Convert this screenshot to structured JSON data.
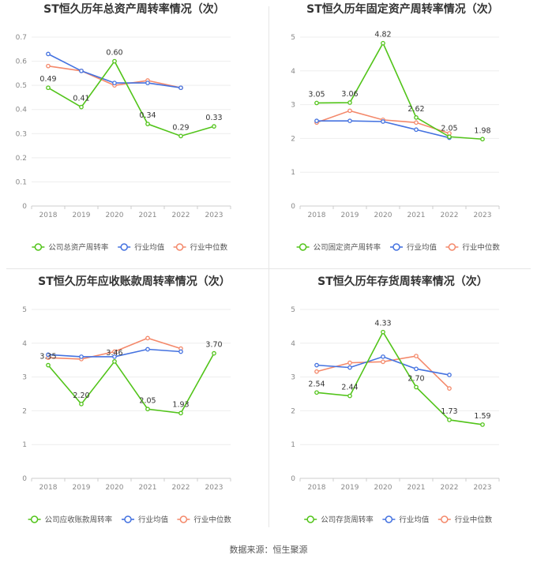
{
  "source": "数据来源：恒生聚源",
  "colors": {
    "company": "#52c41a",
    "average": "#4472e0",
    "median": "#f4896b"
  },
  "chart_data": [
    {
      "type": "line",
      "title": "ST恒久历年总资产周转率情况（次）",
      "categories": [
        "2018",
        "2019",
        "2020",
        "2021",
        "2022",
        "2023"
      ],
      "yticks": [
        "0",
        "0.1",
        "0.2",
        "0.3",
        "0.4",
        "0.5",
        "0.6",
        "0.7"
      ],
      "ylim": [
        0,
        0.7
      ],
      "series": [
        {
          "name": "公司总资产周转率",
          "values": [
            0.49,
            0.41,
            0.6,
            0.34,
            0.29,
            0.33
          ],
          "labels": [
            "0.49",
            "0.41",
            "0.60",
            "0.34",
            "0.29",
            "0.33"
          ]
        },
        {
          "name": "行业均值",
          "values": [
            0.63,
            0.56,
            0.51,
            0.51,
            0.49,
            null
          ]
        },
        {
          "name": "行业中位数",
          "values": [
            0.58,
            0.56,
            0.5,
            0.52,
            0.49,
            null
          ]
        }
      ]
    },
    {
      "type": "line",
      "title": "ST恒久历年固定资产周转率情况（次）",
      "categories": [
        "2018",
        "2019",
        "2020",
        "2021",
        "2022",
        "2023"
      ],
      "yticks": [
        "0",
        "1",
        "2",
        "3",
        "4",
        "5"
      ],
      "ylim": [
        0,
        5
      ],
      "series": [
        {
          "name": "公司固定资产周转率",
          "values": [
            3.05,
            3.06,
            4.82,
            2.62,
            2.05,
            1.98
          ],
          "labels": [
            "3.05",
            "3.06",
            "4.82",
            "2.62",
            "2.05",
            "1.98"
          ]
        },
        {
          "name": "行业均值",
          "values": [
            2.52,
            2.52,
            2.5,
            2.26,
            2.02,
            null
          ]
        },
        {
          "name": "行业中位数",
          "values": [
            2.47,
            2.82,
            2.55,
            2.47,
            2.15,
            null
          ]
        }
      ]
    },
    {
      "type": "line",
      "title": "ST恒久历年应收账款周转率情况（次）",
      "categories": [
        "2018",
        "2019",
        "2020",
        "2021",
        "2022",
        "2023"
      ],
      "yticks": [
        "0",
        "1",
        "2",
        "3",
        "4",
        "5"
      ],
      "ylim": [
        0,
        5
      ],
      "series": [
        {
          "name": "公司应收账款周转率",
          "values": [
            3.35,
            2.2,
            3.46,
            2.05,
            1.93,
            3.7
          ],
          "labels": [
            "3.35",
            "2.20",
            "3.46",
            "2.05",
            "1.93",
            "3.70"
          ]
        },
        {
          "name": "行业均值",
          "values": [
            3.66,
            3.6,
            3.6,
            3.82,
            3.75,
            null
          ]
        },
        {
          "name": "行业中位数",
          "values": [
            3.57,
            3.53,
            3.75,
            4.15,
            3.84,
            null
          ]
        }
      ]
    },
    {
      "type": "line",
      "title": "ST恒久历年存货周转率情况（次）",
      "categories": [
        "2018",
        "2019",
        "2020",
        "2021",
        "2022",
        "2023"
      ],
      "yticks": [
        "0",
        "1",
        "2",
        "3",
        "4",
        "5"
      ],
      "ylim": [
        0,
        5
      ],
      "series": [
        {
          "name": "公司存货周转率",
          "values": [
            2.54,
            2.44,
            4.33,
            2.7,
            1.73,
            1.59
          ],
          "labels": [
            "2.54",
            "2.44",
            "4.33",
            "2.70",
            "1.73",
            "1.59"
          ]
        },
        {
          "name": "行业均值",
          "values": [
            3.35,
            3.28,
            3.6,
            3.24,
            3.06,
            null
          ]
        },
        {
          "name": "行业中位数",
          "values": [
            3.16,
            3.42,
            3.45,
            3.62,
            2.66,
            null
          ]
        }
      ]
    }
  ]
}
